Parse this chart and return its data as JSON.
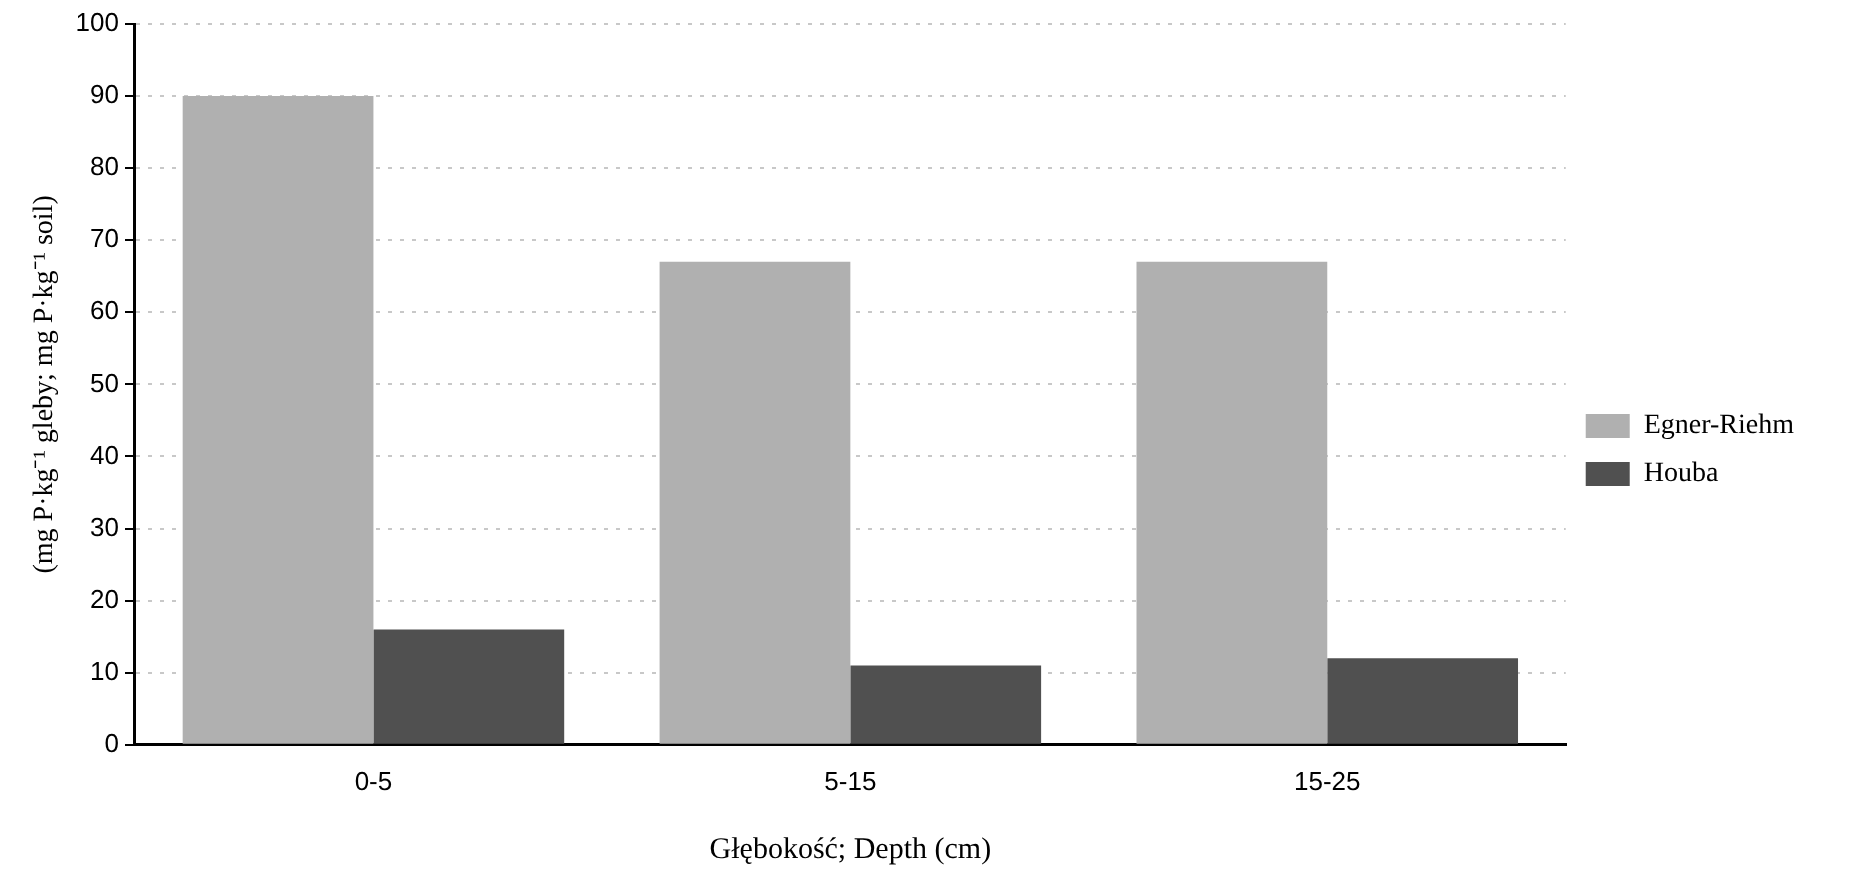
{
  "chart_data": {
    "type": "bar",
    "xlabel": "Głębokość; Depth (cm)",
    "ylabel": "(mg P·kg⁻¹ gleby; mg P·kg⁻¹ soil)",
    "categories": [
      "0-5",
      "5-15",
      "15-25"
    ],
    "series": [
      {
        "name": "Egner-Riehm",
        "color": "#b0b0b0",
        "values": [
          90,
          67,
          67
        ]
      },
      {
        "name": "Houba",
        "color": "#505050",
        "values": [
          16,
          11,
          12
        ]
      }
    ],
    "ylim": [
      0,
      100
    ],
    "yticks": [
      0,
      10,
      20,
      30,
      40,
      50,
      60,
      70,
      80,
      90,
      100
    ],
    "grid": "y",
    "legend": "right"
  }
}
